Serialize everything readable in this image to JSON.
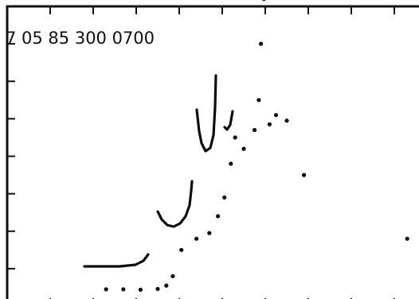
{
  "chart_data": {
    "type": "scatter",
    "title": "7 05 85 300 0700",
    "xlabel": "",
    "ylabel": "",
    "xlim": [
      0,
      10
    ],
    "ylim": [
      0,
      8
    ],
    "grid": false,
    "x_ticks": 10,
    "y_ticks": 8,
    "series": [
      {
        "points": [
          [
            2.3,
            0.45
          ],
          [
            2.7,
            0.45
          ],
          [
            3.1,
            0.44
          ],
          [
            3.5,
            0.46
          ],
          [
            3.7,
            0.55
          ],
          [
            3.85,
            0.8
          ],
          [
            4.05,
            1.5
          ],
          [
            4.4,
            1.8
          ],
          [
            4.7,
            1.95
          ],
          [
            4.9,
            2.4
          ],
          [
            5.05,
            2.9
          ],
          [
            5.2,
            3.8
          ],
          [
            5.3,
            4.5
          ],
          [
            5.5,
            4.2
          ],
          [
            5.75,
            4.7
          ],
          [
            5.85,
            5.5
          ],
          [
            5.9,
            7.0
          ],
          [
            5.97,
            8.2
          ],
          [
            6.1,
            4.85
          ],
          [
            6.25,
            5.1
          ],
          [
            6.5,
            4.95
          ],
          [
            6.9,
            3.5
          ],
          [
            9.3,
            1.8
          ]
        ]
      }
    ]
  }
}
